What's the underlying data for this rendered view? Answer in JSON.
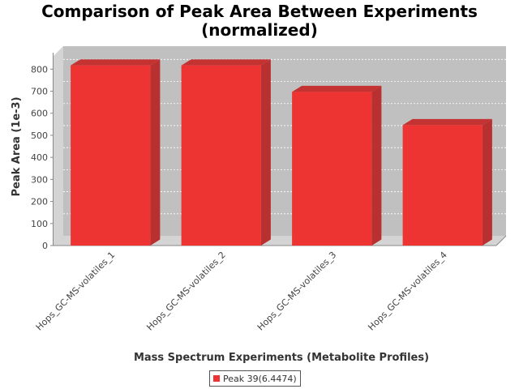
{
  "chart_data": {
    "type": "bar",
    "title_line1": "Comparison of Peak Area Between Experiments",
    "title_line2": "(normalized)",
    "xlabel": "Mass Spectrum Experiments (Metabolite Profiles)",
    "ylabel": "Peak Area (1e-3)",
    "categories": [
      "Hops_GC-MS-volatiles_1",
      "Hops_GC-MS-volatiles_2",
      "Hops_GC-MS-volatiles_3",
      "Hops_GC-MS-volatiles_4"
    ],
    "series": [
      {
        "name": "Peak 39(6.4474)",
        "values": [
          817,
          817,
          697,
          546
        ]
      }
    ],
    "ylim": [
      0,
      860
    ],
    "yticks": [
      0,
      100,
      200,
      300,
      400,
      500,
      600,
      700,
      800
    ],
    "grid": true,
    "legend_position": "bottom",
    "colors": {
      "bar_front": "#ee3333",
      "bar_side": "#b83030",
      "bar_top": "#c43232",
      "plot_bg": "#c0c0c0",
      "wall": "#d4d4d4"
    }
  }
}
